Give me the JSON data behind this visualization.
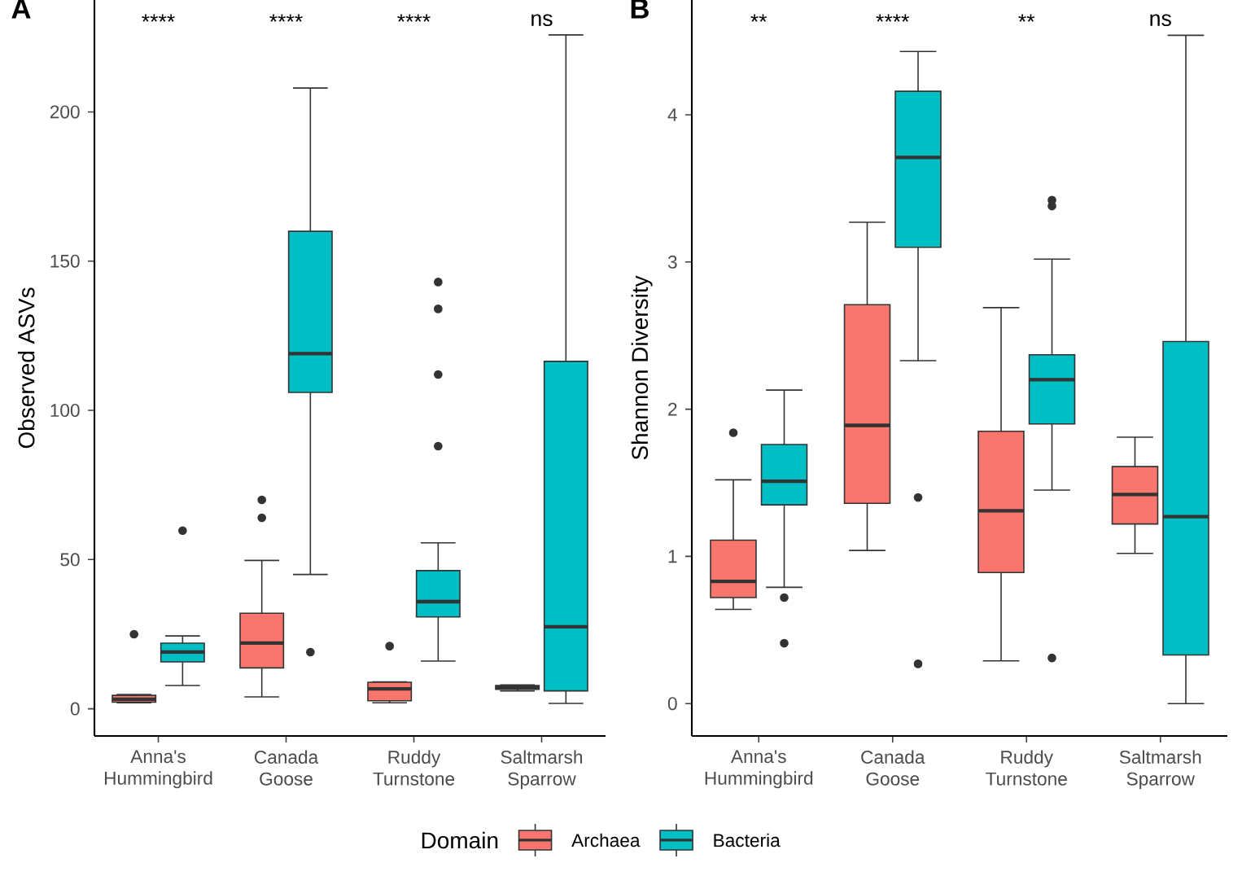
{
  "chart_data": [
    {
      "type": "box",
      "title": "A",
      "ylabel": "Observed ASVs",
      "legend_title": "Domain",
      "legend": "bottom",
      "grid": false,
      "categories": [
        "Anna's Hummingbird",
        "Canada Goose",
        "Ruddy Turnstone",
        "Saltmarsh Sparrow"
      ],
      "ylim": [
        -9.1,
        237.5
      ],
      "yticks": [
        0,
        50,
        100,
        150,
        200
      ],
      "series": [
        {
          "name": "Archaea",
          "color": "#f8766d",
          "boxes": [
            {
              "low": 2,
              "q1": 2.2,
              "median": 3.2,
              "q3": 4.5,
              "high": 4.8,
              "outliers": [
                25
              ]
            },
            {
              "low": 4,
              "q1": 13.7,
              "median": 22,
              "q3": 32,
              "high": 49.7,
              "outliers": [
                64,
                70
              ]
            },
            {
              "low": 2,
              "q1": 2.7,
              "median": 6.7,
              "q3": 8.9,
              "high": 9,
              "outliers": [
                21
              ]
            },
            {
              "low": 6,
              "q1": 6.5,
              "median": 7.2,
              "q3": 7.8,
              "high": 8
            }
          ]
        },
        {
          "name": "Bacteria",
          "color": "#00bfc4",
          "boxes": [
            {
              "low": 7.8,
              "q1": 15.7,
              "median": 19,
              "q3": 22,
              "high": 24.4,
              "outliers": [
                59.7
              ]
            },
            {
              "low": 45,
              "q1": 106,
              "median": 119,
              "q3": 160,
              "high": 208,
              "outliers": [
                19
              ]
            },
            {
              "low": 16,
              "q1": 30.8,
              "median": 35.9,
              "q3": 46.3,
              "high": 55.6,
              "outliers": [
                88,
                112,
                134,
                143
              ]
            },
            {
              "low": 1.8,
              "q1": 6,
              "median": 27.5,
              "q3": 116.4,
              "high": 225.8
            }
          ]
        }
      ],
      "annotations": [
        "****",
        "****",
        "****",
        "ns"
      ]
    },
    {
      "type": "box",
      "title": "B",
      "ylabel": "Shannon Diversity",
      "grid": false,
      "categories": [
        "Anna's Hummingbird",
        "Canada Goose",
        "Ruddy Turnstone",
        "Saltmarsh Sparrow"
      ],
      "ylim": [
        -0.22,
        4.78
      ],
      "yticks": [
        0,
        1,
        2,
        3,
        4
      ],
      "series": [
        {
          "color": "#f8766d",
          "boxes": [
            {
              "low": 0.64,
              "q1": 0.72,
              "median": 0.83,
              "q3": 1.11,
              "high": 1.52,
              "outliers": [
                1.84
              ]
            },
            {
              "low": 1.04,
              "q1": 1.36,
              "median": 1.89,
              "q3": 2.71,
              "high": 3.27
            },
            {
              "low": 0.29,
              "q1": 0.89,
              "median": 1.31,
              "q3": 1.85,
              "high": 2.69
            },
            {
              "low": 1.02,
              "q1": 1.22,
              "median": 1.42,
              "q3": 1.61,
              "high": 1.81
            }
          ]
        },
        {
          "color": "#00bfc4",
          "boxes": [
            {
              "low": 0.79,
              "q1": 1.35,
              "median": 1.51,
              "q3": 1.76,
              "high": 2.13,
              "outliers": [
                0.41,
                0.72
              ]
            },
            {
              "low": 2.33,
              "q1": 3.1,
              "median": 3.71,
              "q3": 4.16,
              "high": 4.43,
              "outliers": [
                0.27,
                1.4
              ]
            },
            {
              "low": 1.45,
              "q1": 1.9,
              "median": 2.2,
              "q3": 2.37,
              "high": 3.02,
              "outliers": [
                0.31,
                3.38,
                3.42
              ]
            },
            {
              "low": 0.0,
              "q1": 0.33,
              "median": 1.27,
              "q3": 2.46,
              "high": 4.54
            }
          ]
        }
      ],
      "annotations": [
        "**",
        "****",
        "**",
        "ns"
      ]
    }
  ]
}
